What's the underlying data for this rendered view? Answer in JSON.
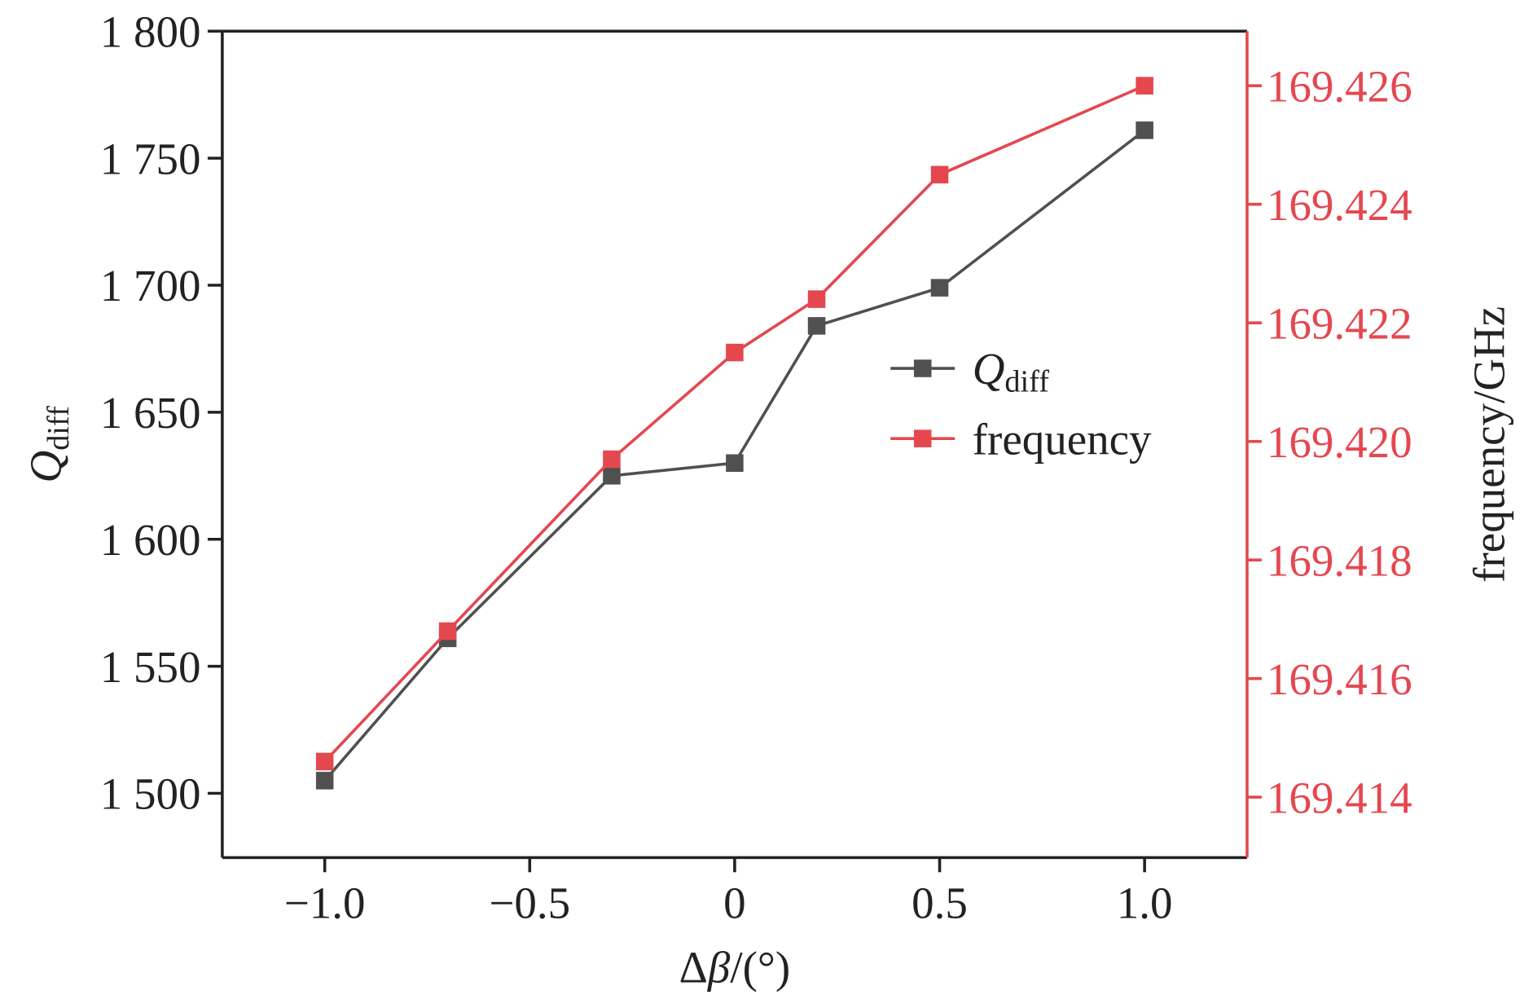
{
  "chart_data": {
    "type": "line",
    "title": "",
    "xlabel": "Δβ/(°)",
    "ylabel_left": "Q",
    "ylabel_left_sub": "diff",
    "ylabel_right": "frequency/GHz",
    "xlim": [
      -1.25,
      1.25
    ],
    "ylim_left": [
      1474.7,
      1800
    ],
    "ylim_right": [
      169.41298,
      169.42692
    ],
    "x_ticks": [
      -1.0,
      -0.5,
      0,
      0.5,
      1.0
    ],
    "x_tick_labels": [
      "−1.0",
      "−0.5",
      "0",
      "0.5",
      "1.0"
    ],
    "y_left_ticks": [
      1500,
      1550,
      1600,
      1650,
      1700,
      1750,
      1800
    ],
    "y_left_tick_labels": [
      "1 500",
      "1 550",
      "1 600",
      "1 650",
      "1 700",
      "1 750",
      "1 800"
    ],
    "y_right_ticks": [
      169.414,
      169.416,
      169.418,
      169.42,
      169.422,
      169.424,
      169.426
    ],
    "y_right_tick_labels": [
      "169.414",
      "169.416",
      "169.418",
      "169.420",
      "169.422",
      "169.424",
      "169.426"
    ],
    "grid": false,
    "legend_position": "center-right",
    "x": [
      -1.0,
      -0.7,
      -0.3,
      0,
      0.2,
      0.5,
      1.0
    ],
    "series": [
      {
        "name": "Q",
        "name_sub": "diff",
        "axis": "left",
        "color": "#505050",
        "values": [
          1505,
          1561,
          1625,
          1630,
          1684,
          1699,
          1761
        ]
      },
      {
        "name": "frequency",
        "axis": "right",
        "color": "#e5474f",
        "values": [
          169.4146,
          169.4168,
          169.4197,
          169.4215,
          169.4224,
          169.4245,
          169.426
        ]
      }
    ]
  }
}
